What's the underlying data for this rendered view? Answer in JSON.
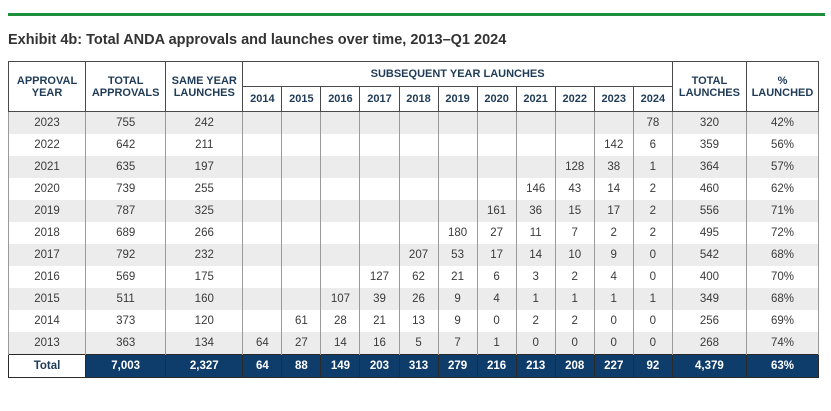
{
  "title": "Exhibit 4b: Total ANDA approvals and launches over time, 2013–Q1 2024",
  "headers": {
    "approval_year": "APPROVAL YEAR",
    "total_approvals": "TOTAL APPROVALS",
    "same_year": "SAME YEAR LAUNCHES",
    "subsequent": "SUBSEQUENT YEAR LAUNCHES",
    "total_launches": "TOTAL LAUNCHES",
    "pct_launched": "% LAUNCHED",
    "years": [
      "2014",
      "2015",
      "2016",
      "2017",
      "2018",
      "2019",
      "2020",
      "2021",
      "2022",
      "2023",
      "2024"
    ]
  },
  "rows": [
    [
      "2023",
      "755",
      "242",
      "",
      "",
      "",
      "",
      "",
      "",
      "",
      "",
      "",
      "",
      "78",
      "320",
      "42%"
    ],
    [
      "2022",
      "642",
      "211",
      "",
      "",
      "",
      "",
      "",
      "",
      "",
      "",
      "",
      "142",
      "6",
      "359",
      "56%"
    ],
    [
      "2021",
      "635",
      "197",
      "",
      "",
      "",
      "",
      "",
      "",
      "",
      "",
      "128",
      "38",
      "1",
      "364",
      "57%"
    ],
    [
      "2020",
      "739",
      "255",
      "",
      "",
      "",
      "",
      "",
      "",
      "",
      "146",
      "43",
      "14",
      "2",
      "460",
      "62%"
    ],
    [
      "2019",
      "787",
      "325",
      "",
      "",
      "",
      "",
      "",
      "",
      "161",
      "36",
      "15",
      "17",
      "2",
      "556",
      "71%"
    ],
    [
      "2018",
      "689",
      "266",
      "",
      "",
      "",
      "",
      "",
      "180",
      "27",
      "11",
      "7",
      "2",
      "2",
      "495",
      "72%"
    ],
    [
      "2017",
      "792",
      "232",
      "",
      "",
      "",
      "",
      "207",
      "53",
      "17",
      "14",
      "10",
      "9",
      "0",
      "542",
      "68%"
    ],
    [
      "2016",
      "569",
      "175",
      "",
      "",
      "",
      "127",
      "62",
      "21",
      "6",
      "3",
      "2",
      "4",
      "0",
      "400",
      "70%"
    ],
    [
      "2015",
      "511",
      "160",
      "",
      "",
      "107",
      "39",
      "26",
      "9",
      "4",
      "1",
      "1",
      "1",
      "1",
      "349",
      "68%"
    ],
    [
      "2014",
      "373",
      "120",
      "",
      "61",
      "28",
      "21",
      "13",
      "9",
      "0",
      "2",
      "2",
      "0",
      "0",
      "256",
      "69%"
    ],
    [
      "2013",
      "363",
      "134",
      "64",
      "27",
      "14",
      "16",
      "5",
      "7",
      "1",
      "0",
      "0",
      "0",
      "0",
      "268",
      "74%"
    ]
  ],
  "total": [
    "Total",
    "7,003",
    "2,327",
    "64",
    "88",
    "149",
    "203",
    "313",
    "279",
    "216",
    "213",
    "208",
    "227",
    "92",
    "4,379",
    "63%"
  ]
}
